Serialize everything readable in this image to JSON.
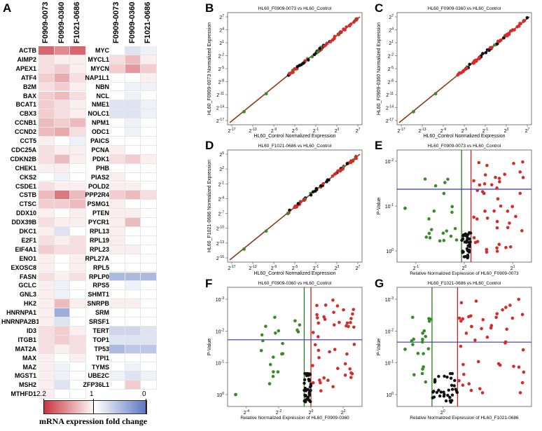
{
  "panels": {
    "a": "A",
    "b": "B",
    "c": "C",
    "d": "D",
    "e": "E",
    "f": "F",
    "g": "G"
  },
  "legend": {
    "title": "mRNA expression fold change",
    "tick_high": "2.2",
    "tick_mid": "1",
    "tick_low": "0",
    "color_high": "#c9343d",
    "color_mid": "#ffffff",
    "color_low": "#5b75c0"
  },
  "chart_data": [
    {
      "id": "A",
      "type": "heatmap",
      "columns": [
        "F0909-0073",
        "F0909-0360",
        "F1021-0686"
      ],
      "scale_range": [
        0,
        2.2
      ],
      "rows_left": [
        {
          "gene": "ACTB",
          "values": [
            1.9,
            1.7,
            1.9
          ]
        },
        {
          "gene": "AIMP2",
          "values": [
            1.2,
            1.1,
            1.1
          ]
        },
        {
          "gene": "APEX1",
          "values": [
            1.2,
            1.3,
            1.1
          ]
        },
        {
          "gene": "ATF4",
          "values": [
            1.3,
            1.5,
            1.2
          ]
        },
        {
          "gene": "B2M",
          "values": [
            1.2,
            1.3,
            1.1
          ]
        },
        {
          "gene": "BAX",
          "values": [
            1.3,
            1.4,
            1.2
          ]
        },
        {
          "gene": "BCAT1",
          "values": [
            1.3,
            1.2,
            1.1
          ]
        },
        {
          "gene": "CBX3",
          "values": [
            1.3,
            1.2,
            1.1
          ]
        },
        {
          "gene": "CCNB1",
          "values": [
            1.4,
            1.3,
            1.4
          ]
        },
        {
          "gene": "CCND2",
          "values": [
            1.4,
            1.5,
            1.2
          ]
        },
        {
          "gene": "CCT5",
          "values": [
            1.1,
            1.0,
            0.9
          ]
        },
        {
          "gene": "CDC25A",
          "values": [
            1.2,
            1.1,
            1.1
          ]
        },
        {
          "gene": "CDKN2B",
          "values": [
            1.2,
            1.4,
            1.1
          ]
        },
        {
          "gene": "CHEK1",
          "values": [
            1.1,
            1.1,
            1.0
          ]
        },
        {
          "gene": "CKS2",
          "values": [
            1.0,
            0.9,
            1.0
          ]
        },
        {
          "gene": "CSDE1",
          "values": [
            1.2,
            1.1,
            1.1
          ]
        },
        {
          "gene": "CSTB",
          "values": [
            1.4,
            1.8,
            1.4
          ]
        },
        {
          "gene": "CTSC",
          "values": [
            1.3,
            1.3,
            1.4
          ]
        },
        {
          "gene": "DDX10",
          "values": [
            1.1,
            1.0,
            1.1
          ]
        },
        {
          "gene": "DDX39B",
          "values": [
            1.2,
            1.1,
            1.1
          ]
        },
        {
          "gene": "DKC1",
          "values": [
            1.1,
            0.8,
            1.0
          ]
        },
        {
          "gene": "E2F1",
          "values": [
            1.2,
            1.1,
            1.2
          ]
        },
        {
          "gene": "EIF4A1",
          "values": [
            1.3,
            1.2,
            1.2
          ]
        },
        {
          "gene": "ENO1",
          "values": [
            1.1,
            1.0,
            1.1
          ]
        },
        {
          "gene": "EXOSC8",
          "values": [
            1.1,
            1.0,
            1.1
          ]
        },
        {
          "gene": "FASN",
          "values": [
            1.2,
            1.1,
            1.2
          ]
        },
        {
          "gene": "GCLC",
          "values": [
            1.1,
            0.9,
            1.0
          ]
        },
        {
          "gene": "GNL3",
          "values": [
            1.1,
            0.9,
            1.0
          ]
        },
        {
          "gene": "HK2",
          "values": [
            1.1,
            1.4,
            1.1
          ]
        },
        {
          "gene": "HNRNPA1",
          "values": [
            1.1,
            0.4,
            1.0
          ]
        },
        {
          "gene": "HNRNPA2B1",
          "values": [
            1.1,
            0.8,
            1.0
          ]
        },
        {
          "gene": "ID3",
          "values": [
            1.2,
            1.3,
            1.1
          ]
        },
        {
          "gene": "ITGB1",
          "values": [
            1.2,
            1.3,
            1.2
          ]
        },
        {
          "gene": "MAT2A",
          "values": [
            1.2,
            1.1,
            1.2
          ]
        },
        {
          "gene": "MAX",
          "values": [
            1.1,
            1.0,
            1.1
          ]
        },
        {
          "gene": "MAZ",
          "values": [
            1.1,
            0.9,
            1.0
          ]
        },
        {
          "gene": "MGST1",
          "values": [
            1.1,
            0.9,
            1.0
          ]
        },
        {
          "gene": "MSH2",
          "values": [
            1.1,
            0.8,
            1.0
          ]
        },
        {
          "gene": "MTHFD1",
          "values": [
            1.1,
            1.0,
            1.0
          ]
        }
      ],
      "rows_right": [
        {
          "gene": "MYC",
          "values": [
            1.0,
            0.8,
            0.9
          ]
        },
        {
          "gene": "MYCL1",
          "values": [
            1.2,
            1.4,
            1.1
          ]
        },
        {
          "gene": "MYCN",
          "values": [
            1.3,
            1.6,
            1.3
          ]
        },
        {
          "gene": "NAP1L1",
          "values": [
            1.0,
            1.0,
            1.1
          ]
        },
        {
          "gene": "NBN",
          "values": [
            1.0,
            0.9,
            0.9
          ]
        },
        {
          "gene": "NCL",
          "values": [
            1.0,
            0.9,
            1.0
          ]
        },
        {
          "gene": "NME1",
          "values": [
            0.8,
            0.8,
            0.9
          ]
        },
        {
          "gene": "NOLC1",
          "values": [
            0.8,
            0.8,
            0.9
          ]
        },
        {
          "gene": "NPM1",
          "values": [
            1.0,
            0.9,
            1.0
          ]
        },
        {
          "gene": "ODC1",
          "values": [
            1.0,
            0.9,
            1.0
          ]
        },
        {
          "gene": "PAICS",
          "values": [
            1.0,
            1.0,
            1.0
          ]
        },
        {
          "gene": "PCNA",
          "values": [
            1.1,
            1.0,
            1.0
          ]
        },
        {
          "gene": "PDK1",
          "values": [
            1.2,
            1.3,
            1.1
          ]
        },
        {
          "gene": "PHB",
          "values": [
            1.0,
            1.0,
            1.0
          ]
        },
        {
          "gene": "PIAS2",
          "values": [
            1.1,
            1.0,
            1.0
          ]
        },
        {
          "gene": "POLD2",
          "values": [
            1.1,
            1.1,
            1.0
          ]
        },
        {
          "gene": "PPP2R4",
          "values": [
            1.3,
            1.4,
            1.2
          ]
        },
        {
          "gene": "PSMG1",
          "values": [
            1.1,
            1.0,
            1.0
          ]
        },
        {
          "gene": "PTEN",
          "values": [
            1.1,
            1.1,
            1.0
          ]
        },
        {
          "gene": "PYCR1",
          "values": [
            1.1,
            1.4,
            1.0
          ]
        },
        {
          "gene": "RPL13",
          "values": [
            1.1,
            1.0,
            1.0
          ]
        },
        {
          "gene": "RPL19",
          "values": [
            1.1,
            1.0,
            1.0
          ]
        },
        {
          "gene": "RPL23",
          "values": [
            1.1,
            1.1,
            1.0
          ]
        },
        {
          "gene": "RPL27A",
          "values": [
            1.0,
            1.0,
            1.0
          ]
        },
        {
          "gene": "RPL5",
          "values": [
            1.0,
            1.0,
            1.0
          ]
        },
        {
          "gene": "RPLP0",
          "values": [
            0.5,
            0.5,
            0.5
          ]
        },
        {
          "gene": "RPS5",
          "values": [
            1.0,
            0.9,
            1.0
          ]
        },
        {
          "gene": "SHMT1",
          "values": [
            1.0,
            1.0,
            1.0
          ]
        },
        {
          "gene": "SNRPB",
          "values": [
            1.1,
            1.1,
            1.0
          ]
        },
        {
          "gene": "SRM",
          "values": [
            1.0,
            1.0,
            1.0
          ]
        },
        {
          "gene": "SRSF1",
          "values": [
            1.0,
            1.0,
            1.0
          ]
        },
        {
          "gene": "TERT",
          "values": [
            0.7,
            0.7,
            0.8
          ]
        },
        {
          "gene": "TOP1",
          "values": [
            0.8,
            0.8,
            0.8
          ]
        },
        {
          "gene": "TP53",
          "values": [
            0.5,
            0.6,
            0.6
          ]
        },
        {
          "gene": "TPI1",
          "values": [
            1.0,
            1.0,
            1.0
          ]
        },
        {
          "gene": "TYMS",
          "values": [
            1.0,
            0.9,
            1.0
          ]
        },
        {
          "gene": "UBE2C",
          "values": [
            0.9,
            0.8,
            0.9
          ]
        },
        {
          "gene": "ZFP36L1",
          "values": [
            1.0,
            1.3,
            1.0
          ]
        }
      ]
    },
    {
      "id": "B",
      "type": "scatter",
      "title": "HL60_F0909-0073 vs HL60_Control",
      "xlabel": "HL60_Control Normalized Expression",
      "ylabel": "HL60_F0909-0073 Normalized Expression",
      "x_ticks": [
        "2^-17",
        "2^-13",
        "2^-9",
        "2^-5",
        "2^-1",
        "2^3",
        "2^7"
      ],
      "y_ticks": [
        "2^7",
        "2^4",
        "2^1",
        "2^-2",
        "2^-5",
        "2^-8",
        "2^-11",
        "2^-14",
        "2^-17"
      ],
      "xlim": [
        -17,
        7
      ],
      "ylim": [
        -18,
        8
      ]
    },
    {
      "id": "C",
      "type": "scatter",
      "title": "HL60_F0909-0360 vs HL60_Control",
      "xlabel": "HL60_Control Normalized Expression",
      "ylabel": "HL60_F0909-0360 Normalized Expression",
      "x_ticks": [
        "2^-17",
        "2^-13",
        "2^-9",
        "2^-5",
        "2^-1",
        "2^3",
        "2^7"
      ],
      "y_ticks": [
        "2^7",
        "2^4",
        "2^1",
        "2^-2",
        "2^-5",
        "2^-8",
        "2^-11",
        "2^-14",
        "2^-17"
      ],
      "xlim": [
        -17,
        7
      ],
      "ylim": [
        -18,
        8
      ]
    },
    {
      "id": "D",
      "type": "scatter",
      "title": "HL60_F1021-0686 vs HL60_Control",
      "xlabel": "HL60_Control Normalized Expression",
      "ylabel": "HL60_F1021-0686 Normalized Expression",
      "x_ticks": [
        "2^-17",
        "2^-13",
        "2^-9",
        "2^-5",
        "2^-1",
        "2^3",
        "2^7"
      ],
      "y_ticks": [
        "2^5",
        "2^2",
        "2^-1",
        "2^-4",
        "2^-7",
        "2^-10",
        "2^-13",
        "2^-16"
      ],
      "xlim": [
        -17,
        7
      ],
      "ylim": [
        -17,
        7
      ]
    },
    {
      "id": "E",
      "type": "scatter",
      "title": "HL60_F0909-0073 vs HL60_Control",
      "xlabel": "Relative Normalized Expression of HL60_F0909-0073",
      "ylabel": "P-Value",
      "x_ticks": [
        "2^-1",
        "2^0",
        "2^1"
      ],
      "y_ticks": [
        "10^-2",
        "10^-1",
        "10^0"
      ],
      "threshold_p": 0.05
    },
    {
      "id": "F",
      "type": "scatter",
      "title": "HL60_F0909-0360 vs HL60_Control",
      "xlabel": "Relative Normalized Expression of HL60_F0909-0360",
      "ylabel": "P-Value",
      "x_ticks": [
        "2^-4",
        "2^-2",
        "2^0",
        "2^2"
      ],
      "y_ticks": [
        "10^-3",
        "10^-2",
        "10^-1",
        "10^0"
      ],
      "threshold_p": 0.05
    },
    {
      "id": "G",
      "type": "scatter",
      "title": "HL60_F1021-0686 vs HL60_Control",
      "xlabel": "Relative Normalized Expression of HL60_F1021-0686",
      "ylabel": "P-Value",
      "x_ticks": [
        "2^0"
      ],
      "y_ticks": [
        "10^-3",
        "10^-2",
        "10^-1",
        "10^0"
      ],
      "threshold_p": 0.05
    }
  ]
}
